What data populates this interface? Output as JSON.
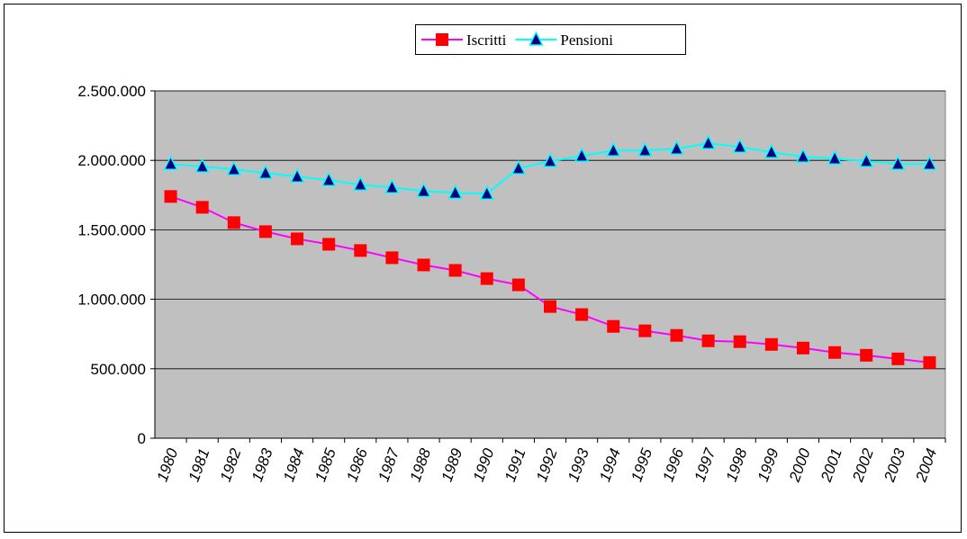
{
  "chart_data": {
    "type": "line",
    "categories": [
      "1980",
      "1981",
      "1982",
      "1983",
      "1984",
      "1985",
      "1986",
      "1987",
      "1988",
      "1989",
      "1990",
      "1991",
      "1992",
      "1993",
      "1994",
      "1995",
      "1996",
      "1997",
      "1998",
      "1999",
      "2000",
      "2001",
      "2002",
      "2003",
      "2004"
    ],
    "series": [
      {
        "name": "Iscritti",
        "color": "#ff00ff",
        "marker": "square",
        "marker_color": "#ff0000",
        "values": [
          1740000,
          1662000,
          1552000,
          1487000,
          1435000,
          1396000,
          1351000,
          1299000,
          1247000,
          1208000,
          1149000,
          1104000,
          948000,
          890000,
          805000,
          773000,
          740000,
          701000,
          695000,
          675000,
          649000,
          617000,
          597000,
          571000,
          545000
        ]
      },
      {
        "name": "Pensioni",
        "color": "#00ffff",
        "marker": "triangle",
        "marker_color": "#000080",
        "values": [
          1974000,
          1955000,
          1935000,
          1909000,
          1883000,
          1857000,
          1825000,
          1805000,
          1779000,
          1766000,
          1760000,
          1942000,
          1994000,
          2032000,
          2071000,
          2071000,
          2084000,
          2123000,
          2097000,
          2058000,
          2026000,
          2013000,
          1994000,
          1974000,
          1974000
        ]
      }
    ],
    "ylim": [
      0,
      2500000
    ],
    "yticks": [
      0,
      {
        "value": 500000,
        "label": "500.000"
      },
      {
        "value": 1000000,
        "label": "1.000.000"
      },
      {
        "value": 1500000,
        "label": "1.500.000"
      },
      {
        "value": 2000000,
        "label": "2.000.000"
      },
      {
        "value": 2500000,
        "label": "2.500.000"
      }
    ],
    "grid": true,
    "plot_background": "#c0c0c0",
    "legend_position": "top"
  }
}
